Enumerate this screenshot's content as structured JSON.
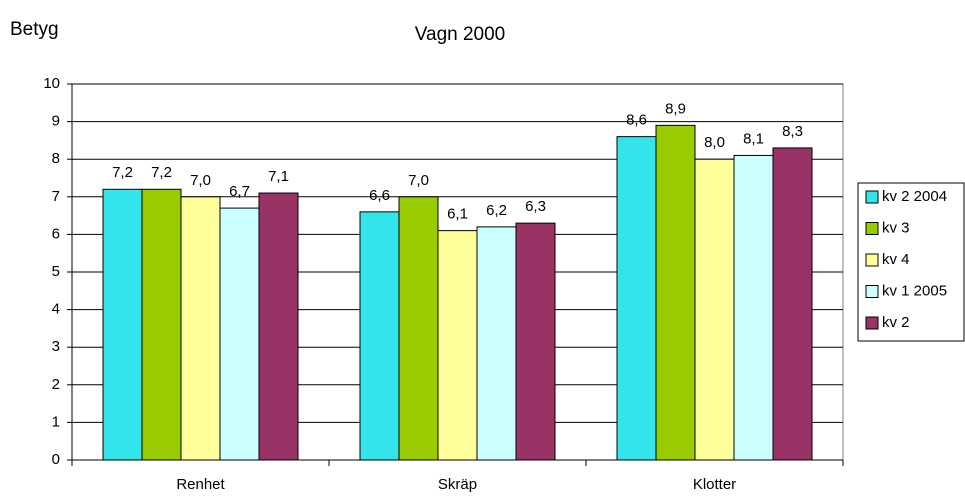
{
  "chart_data": {
    "type": "bar",
    "title": "Vagn 2000",
    "ylabel": "Betyg",
    "categories": [
      "Renhet",
      "Skräp",
      "Klotter"
    ],
    "series": [
      {
        "name": "kv 2 2004",
        "color": "#33e5ea",
        "values": [
          7.2,
          6.6,
          8.6
        ],
        "value_labels": [
          "7,2",
          "6,6",
          "8,6"
        ]
      },
      {
        "name": "kv 3",
        "color": "#99cc00",
        "values": [
          7.2,
          7.0,
          8.9
        ],
        "value_labels": [
          "7,2",
          "7,0",
          "8,9"
        ]
      },
      {
        "name": "kv 4",
        "color": "#ffff99",
        "values": [
          7.0,
          6.1,
          8.0
        ],
        "value_labels": [
          "7,0",
          "6,1",
          "8,0"
        ]
      },
      {
        "name": "kv 1 2005",
        "color": "#ccffff",
        "values": [
          6.7,
          6.2,
          8.1
        ],
        "value_labels": [
          "6,7",
          "6,2",
          "8,1"
        ]
      },
      {
        "name": "kv 2",
        "color": "#993366",
        "values": [
          7.1,
          6.3,
          8.3
        ],
        "value_labels": [
          "7,1",
          "6,3",
          "8,3"
        ]
      }
    ],
    "ylim": [
      0,
      10
    ],
    "yticks": [
      0,
      1,
      2,
      3,
      4,
      5,
      6,
      7,
      8,
      9,
      10
    ],
    "grid": true,
    "legend": "right"
  }
}
